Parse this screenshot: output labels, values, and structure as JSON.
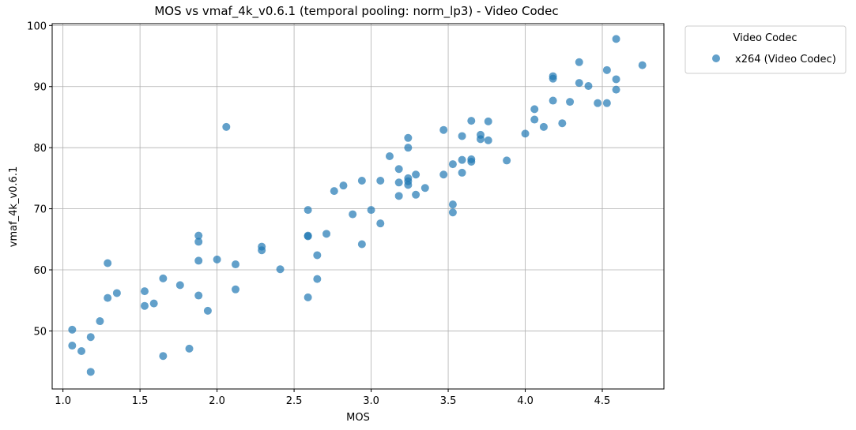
{
  "chart_data": {
    "type": "scatter",
    "title": "MOS vs vmaf_4k_v0.6.1 (temporal pooling: norm_lp3) - Video Codec",
    "xlabel": "MOS",
    "ylabel": "vmaf_4k_v0.6.1",
    "xlim": [
      0.93,
      4.9
    ],
    "ylim": [
      40.5,
      100.3
    ],
    "xticks": [
      "1.0",
      "1.5",
      "2.0",
      "2.5",
      "3.0",
      "3.5",
      "4.0",
      "4.5"
    ],
    "yticks": [
      "50",
      "60",
      "70",
      "80",
      "90",
      "100"
    ],
    "grid": true,
    "legend": {
      "title": "Video Codec",
      "placement": "outside-top-right"
    },
    "series": [
      {
        "name": "x264 (Video Codec)",
        "color": "#1f77b4",
        "points": [
          [
            1.06,
            50.2
          ],
          [
            1.06,
            47.6
          ],
          [
            1.12,
            46.7
          ],
          [
            1.18,
            49.0
          ],
          [
            1.18,
            43.3
          ],
          [
            1.24,
            51.6
          ],
          [
            1.29,
            61.1
          ],
          [
            1.29,
            55.4
          ],
          [
            1.35,
            56.2
          ],
          [
            1.53,
            56.5
          ],
          [
            1.53,
            54.1
          ],
          [
            1.59,
            54.5
          ],
          [
            1.65,
            58.6
          ],
          [
            1.65,
            45.9
          ],
          [
            1.76,
            57.5
          ],
          [
            1.82,
            47.1
          ],
          [
            1.88,
            65.6
          ],
          [
            1.88,
            64.6
          ],
          [
            1.88,
            61.5
          ],
          [
            1.88,
            55.8
          ],
          [
            1.94,
            53.3
          ],
          [
            2.0,
            61.7
          ],
          [
            2.06,
            83.4
          ],
          [
            2.12,
            60.9
          ],
          [
            2.12,
            56.8
          ],
          [
            2.29,
            63.8
          ],
          [
            2.29,
            63.2
          ],
          [
            2.41,
            60.1
          ],
          [
            2.59,
            69.8
          ],
          [
            2.59,
            65.6
          ],
          [
            2.59,
            65.5
          ],
          [
            2.59,
            55.5
          ],
          [
            2.65,
            62.4
          ],
          [
            2.65,
            58.5
          ],
          [
            2.71,
            65.9
          ],
          [
            2.76,
            72.9
          ],
          [
            2.82,
            73.8
          ],
          [
            2.88,
            69.1
          ],
          [
            2.94,
            74.6
          ],
          [
            2.94,
            64.2
          ],
          [
            3.0,
            69.8
          ],
          [
            3.06,
            74.6
          ],
          [
            3.06,
            67.6
          ],
          [
            3.12,
            78.6
          ],
          [
            3.18,
            76.5
          ],
          [
            3.18,
            74.3
          ],
          [
            3.18,
            72.1
          ],
          [
            3.24,
            81.6
          ],
          [
            3.24,
            80.0
          ],
          [
            3.24,
            75.0
          ],
          [
            3.24,
            74.5
          ],
          [
            3.24,
            73.9
          ],
          [
            3.29,
            75.6
          ],
          [
            3.29,
            72.3
          ],
          [
            3.35,
            73.4
          ],
          [
            3.47,
            82.9
          ],
          [
            3.47,
            75.6
          ],
          [
            3.53,
            77.3
          ],
          [
            3.53,
            70.7
          ],
          [
            3.53,
            69.4
          ],
          [
            3.59,
            81.9
          ],
          [
            3.59,
            78.0
          ],
          [
            3.59,
            75.9
          ],
          [
            3.65,
            84.4
          ],
          [
            3.65,
            78.1
          ],
          [
            3.65,
            77.7
          ],
          [
            3.71,
            82.1
          ],
          [
            3.71,
            81.4
          ],
          [
            3.76,
            84.3
          ],
          [
            3.76,
            81.2
          ],
          [
            3.88,
            77.9
          ],
          [
            4.0,
            82.3
          ],
          [
            4.06,
            86.3
          ],
          [
            4.06,
            84.6
          ],
          [
            4.12,
            83.4
          ],
          [
            4.18,
            91.7
          ],
          [
            4.18,
            91.3
          ],
          [
            4.18,
            87.7
          ],
          [
            4.24,
            84.0
          ],
          [
            4.29,
            87.5
          ],
          [
            4.35,
            94.0
          ],
          [
            4.35,
            90.6
          ],
          [
            4.41,
            90.1
          ],
          [
            4.47,
            87.3
          ],
          [
            4.53,
            92.7
          ],
          [
            4.53,
            87.3
          ],
          [
            4.59,
            97.8
          ],
          [
            4.59,
            91.2
          ],
          [
            4.59,
            89.5
          ],
          [
            4.76,
            93.5
          ]
        ]
      }
    ]
  }
}
